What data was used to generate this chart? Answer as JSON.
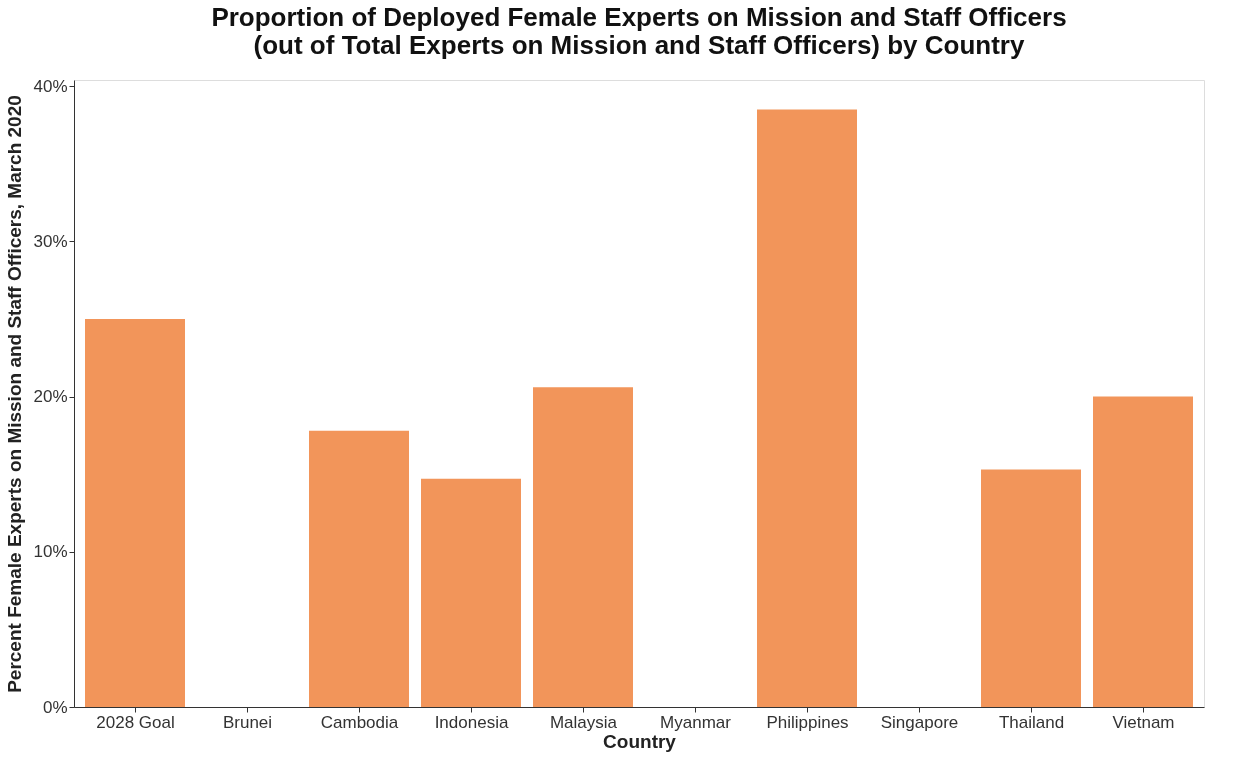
{
  "chart_data": {
    "type": "bar",
    "title": [
      "Proportion of Deployed Female Experts on Mission and Staff Officers",
      "(out of Total Experts on Mission and Staff Officers) by Country"
    ],
    "xlabel": "Country",
    "ylabel": "Percent Female Experts on Mission and Staff Officers, March 2020",
    "categories": [
      "2028 Goal",
      "Brunei",
      "Cambodia",
      "Indonesia",
      "Malaysia",
      "Myanmar",
      "Philippines",
      "Singapore",
      "Thailand",
      "Vietnam"
    ],
    "values": [
      25,
      0,
      17.8,
      14.7,
      20.6,
      0,
      38.5,
      0,
      15.3,
      20
    ],
    "color": "#f2955a",
    "ylim": [
      0,
      40.4
    ],
    "yticks": [
      {
        "value": 0,
        "label": "0%"
      },
      {
        "value": 10,
        "label": "10%"
      },
      {
        "value": 20,
        "label": "20%"
      },
      {
        "value": 30,
        "label": "30%"
      },
      {
        "value": 40,
        "label": "40%"
      }
    ],
    "grid": false
  }
}
